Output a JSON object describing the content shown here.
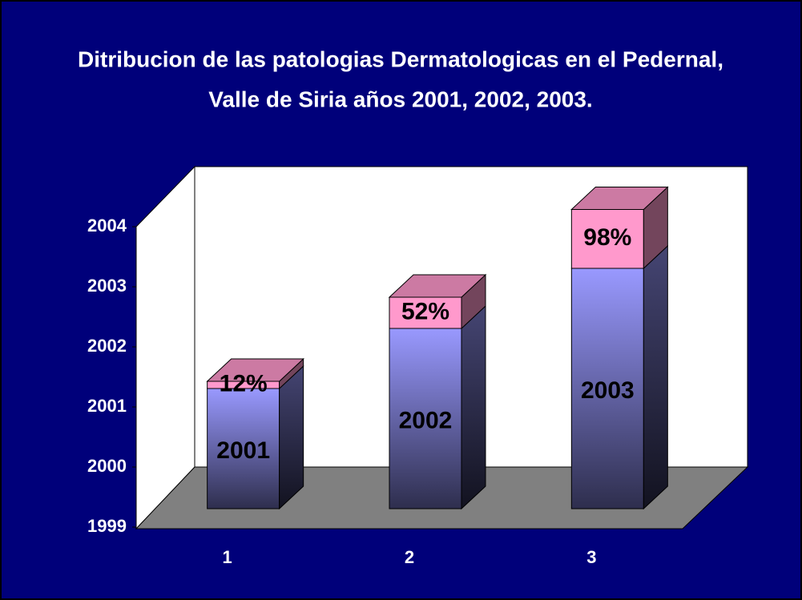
{
  "chart_data": {
    "type": "bar3d_stacked",
    "title": [
      "Ditribucion de las patologias Dermatologicas en el Pedernal,",
      "Valle de Siria años 2001, 2002, 2003."
    ],
    "categories": [
      "1",
      "2",
      "3"
    ],
    "series": [
      {
        "color": "#9999ff",
        "values": [
          2001,
          2002,
          2003
        ]
      },
      {
        "color": "#ff99cc",
        "values": [
          0.12,
          0.52,
          0.98
        ],
        "value_labels": [
          "12%",
          "52%",
          "98%"
        ]
      }
    ],
    "ylim": [
      1999,
      2004
    ],
    "yticks": [
      1999,
      2000,
      2001,
      2002,
      2003,
      2004
    ]
  }
}
